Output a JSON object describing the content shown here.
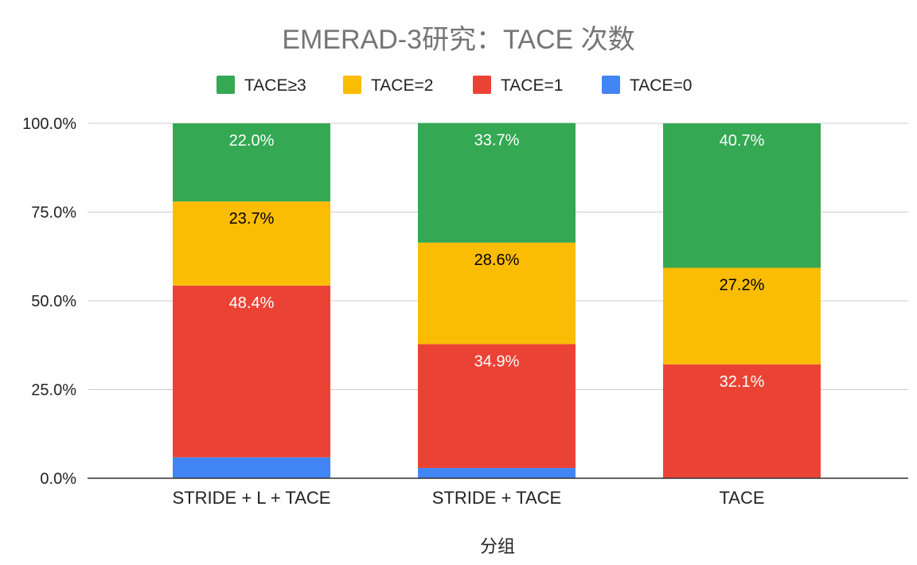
{
  "chart_data": {
    "type": "bar",
    "stacked": true,
    "title": "EMERAD-3研究：TACE 次数",
    "xlabel": "分组",
    "ylabel": "",
    "ylim": [
      0,
      100
    ],
    "y_ticks": [
      0,
      25,
      50,
      75,
      100
    ],
    "y_tick_labels": [
      "0.0%",
      "25.0%",
      "50.0%",
      "75.0%",
      "100.0%"
    ],
    "grid": true,
    "legend_position": "top",
    "categories": [
      "STRIDE + L + TACE",
      "STRIDE + TACE",
      "TACE"
    ],
    "series": [
      {
        "name": "TACE=0",
        "color": "#4285f4",
        "label_color": "#ffffff",
        "values": [
          5.9,
          2.9,
          0
        ],
        "data_labels": [
          "",
          "",
          ""
        ]
      },
      {
        "name": "TACE=1",
        "color": "#ea4335",
        "label_color": "#ffffff",
        "values": [
          48.4,
          34.9,
          32.1
        ],
        "data_labels": [
          "48.4%",
          "34.9%",
          "32.1%"
        ]
      },
      {
        "name": "TACE=2",
        "color": "#fbbc04",
        "label_color": "#000000",
        "values": [
          23.7,
          28.6,
          27.2
        ],
        "data_labels": [
          "23.7%",
          "28.6%",
          "27.2%"
        ]
      },
      {
        "name": "TACE≥3",
        "color": "#34a853",
        "label_color": "#ffffff",
        "values": [
          22.0,
          33.7,
          40.7
        ],
        "data_labels": [
          "22.0%",
          "33.7%",
          "40.7%"
        ]
      }
    ],
    "legend_order": [
      "TACE≥3",
      "TACE=2",
      "TACE=1",
      "TACE=0"
    ]
  }
}
